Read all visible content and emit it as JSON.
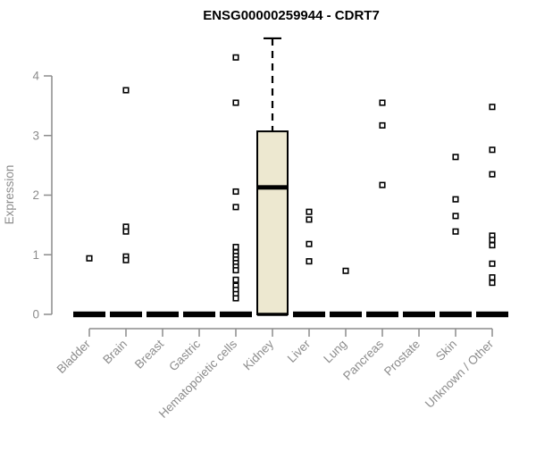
{
  "chart_data": {
    "type": "boxplot",
    "title": "ENSG00000259944 - CDRT7",
    "ylabel": "Expression",
    "xlabel": "",
    "yticks": [
      0,
      1,
      2,
      3,
      4
    ],
    "ylim": [
      0,
      4.7
    ],
    "grid": false,
    "legend": false,
    "categories": [
      "Bladder",
      "Brain",
      "Breast",
      "Gastric",
      "Hematopoietic cells",
      "Kidney",
      "Liver",
      "Lung",
      "Pancreas",
      "Prostate",
      "Skin",
      "Unknown / Other"
    ],
    "boxes": [
      {
        "category": "Bladder",
        "low": 0,
        "q1": 0,
        "median": 0,
        "q3": 0,
        "high": 0
      },
      {
        "category": "Brain",
        "low": 0,
        "q1": 0,
        "median": 0,
        "q3": 0,
        "high": 0
      },
      {
        "category": "Breast",
        "low": 0,
        "q1": 0,
        "median": 0,
        "q3": 0,
        "high": 0
      },
      {
        "category": "Gastric",
        "low": 0,
        "q1": 0,
        "median": 0,
        "q3": 0,
        "high": 0
      },
      {
        "category": "Hematopoietic cells",
        "low": 0,
        "q1": 0,
        "median": 0,
        "q3": 0,
        "high": 0
      },
      {
        "category": "Kidney",
        "low": 0,
        "q1": 0,
        "median": 2.13,
        "q3": 3.07,
        "high": 4.63
      },
      {
        "category": "Liver",
        "low": 0,
        "q1": 0,
        "median": 0,
        "q3": 0,
        "high": 0
      },
      {
        "category": "Lung",
        "low": 0,
        "q1": 0,
        "median": 0,
        "q3": 0,
        "high": 0
      },
      {
        "category": "Pancreas",
        "low": 0,
        "q1": 0,
        "median": 0,
        "q3": 0,
        "high": 0
      },
      {
        "category": "Prostate",
        "low": 0,
        "q1": 0,
        "median": 0,
        "q3": 0,
        "high": 0
      },
      {
        "category": "Skin",
        "low": 0,
        "q1": 0,
        "median": 0,
        "q3": 0,
        "high": 0
      },
      {
        "category": "Unknown / Other",
        "low": 0,
        "q1": 0,
        "median": 0,
        "q3": 0,
        "high": 0
      }
    ],
    "outliers": [
      {
        "category": "Bladder",
        "values": [
          0.94
        ]
      },
      {
        "category": "Brain",
        "values": [
          3.76,
          1.47,
          1.39,
          0.97,
          0.91
        ]
      },
      {
        "category": "Breast",
        "values": []
      },
      {
        "category": "Gastric",
        "values": []
      },
      {
        "category": "Hematopoietic cells",
        "values": [
          4.31,
          3.55,
          2.06,
          1.8,
          1.13,
          1.04,
          0.98,
          0.92,
          0.86,
          0.8,
          0.74,
          0.58,
          0.48,
          0.41,
          0.34,
          0.27
        ]
      },
      {
        "category": "Kidney",
        "values": []
      },
      {
        "category": "Liver",
        "values": [
          1.72,
          1.59,
          1.18,
          0.89
        ]
      },
      {
        "category": "Lung",
        "values": [
          0.73
        ]
      },
      {
        "category": "Pancreas",
        "values": [
          3.55,
          3.17,
          2.17
        ]
      },
      {
        "category": "Prostate",
        "values": []
      },
      {
        "category": "Skin",
        "values": [
          2.64,
          1.93,
          1.65,
          1.39
        ]
      },
      {
        "category": "Unknown / Other",
        "values": [
          3.48,
          2.76,
          2.35,
          1.32,
          1.25,
          1.16,
          0.85,
          0.62,
          0.53
        ]
      }
    ],
    "colors": {
      "box_fill": "#ede8d0",
      "box_stroke": "#000000",
      "median": "#000000",
      "zero_bar": "#000000",
      "outlier_stroke": "#000000",
      "outlier_fill": "#ffffff",
      "axis": "#8c8c8c",
      "title": "#000000",
      "background": "#ffffff"
    }
  }
}
